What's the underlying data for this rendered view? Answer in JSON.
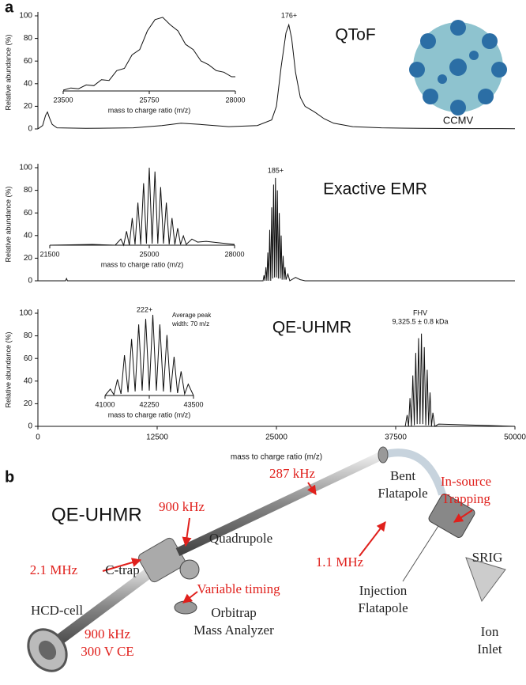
{
  "figure": {
    "panel_labels": [
      "a",
      "b"
    ],
    "image_label": "CCMV",
    "schematic": {
      "title": "QE-UHMR",
      "labels": [
        {
          "lines": [
            "287 kHz"
          ],
          "color": "#e0201c"
        },
        {
          "lines": [
            "Bent",
            "Flatapole"
          ],
          "color": "#222222"
        },
        {
          "lines": [
            "In-source",
            "Trapping"
          ],
          "color": "#e0201c"
        },
        {
          "lines": [
            "900 kHz"
          ],
          "color": "#e0201c"
        },
        {
          "lines": [
            "Quadrupole"
          ],
          "color": "#222222"
        },
        {
          "lines": [
            "2.1 MHz"
          ],
          "color": "#e0201c"
        },
        {
          "lines": [
            "C-trap"
          ],
          "color": "#222222"
        },
        {
          "lines": [
            "1.1 MHz"
          ],
          "color": "#e0201c"
        },
        {
          "lines": [
            "SRIG"
          ],
          "color": "#222222"
        },
        {
          "lines": [
            "Injection",
            "Flatapole"
          ],
          "color": "#222222"
        },
        {
          "lines": [
            "Variable timing"
          ],
          "color": "#e0201c"
        },
        {
          "lines": [
            "HCD-cell"
          ],
          "color": "#222222"
        },
        {
          "lines": [
            "Orbitrap",
            "Mass Analyzer"
          ],
          "color": "#222222"
        },
        {
          "lines": [
            "900 kHz",
            "300 V CE"
          ],
          "color": "#e0201c"
        },
        {
          "lines": [
            "Ion",
            "Inlet"
          ],
          "color": "#222222"
        }
      ]
    }
  },
  "chart_data": [
    {
      "type": "line",
      "title": "QToF",
      "ylabel": "Relative abundance (%)",
      "annotations": [
        "176+"
      ],
      "color": "#111111",
      "xlim": [
        0,
        50000
      ],
      "ylim": [
        0,
        100
      ],
      "yticks": [
        0,
        20,
        40,
        60,
        80,
        100
      ],
      "x": [
        0,
        500,
        800,
        1000,
        1200,
        1500,
        2000,
        5000,
        10000,
        13000,
        15000,
        17000,
        20000,
        23000,
        24500,
        25000,
        25500,
        26000,
        26300,
        26600,
        27000,
        27500,
        28000,
        29000,
        30000,
        31000,
        33000,
        36000,
        40000,
        45000,
        50000
      ],
      "values": [
        0,
        3,
        12,
        15,
        10,
        4,
        1,
        0.5,
        1,
        3,
        5,
        4,
        2,
        3,
        8,
        20,
        55,
        85,
        92,
        80,
        50,
        28,
        20,
        15,
        9,
        5,
        2,
        1,
        0.5,
        0.3,
        0.2
      ]
    },
    {
      "type": "line",
      "xlabel": "mass to charge ratio (m/z)",
      "color": "#111111",
      "xlim": [
        23500,
        28000
      ],
      "ylim": [
        0,
        100
      ],
      "xticks": [
        23500,
        25750,
        28000
      ],
      "x": [
        23500,
        23700,
        23900,
        24100,
        24300,
        24500,
        24700,
        24900,
        25100,
        25300,
        25500,
        25700,
        25900,
        26100,
        26300,
        26500,
        26700,
        26900,
        27100,
        27300,
        27500,
        27700,
        27900,
        28000
      ],
      "values": [
        1,
        4,
        3,
        8,
        7,
        15,
        14,
        27,
        30,
        48,
        55,
        80,
        95,
        98,
        88,
        80,
        62,
        55,
        40,
        35,
        27,
        25,
        19,
        19
      ]
    },
    {
      "type": "line",
      "title": "Exactive EMR",
      "ylabel": "Relative abundance (%)",
      "annotations": [
        "185+"
      ],
      "color": "#111111",
      "xlim": [
        0,
        50000
      ],
      "ylim": [
        0,
        100
      ],
      "yticks": [
        0,
        20,
        40,
        60,
        80,
        100
      ],
      "x": [
        0,
        2900,
        3000,
        3100,
        20000,
        23600,
        23700,
        23800,
        23900,
        24000,
        24100,
        24200,
        24300,
        24400,
        24500,
        24600,
        24700,
        24800,
        24900,
        25000,
        25100,
        25200,
        25300,
        25400,
        25500,
        25600,
        25700,
        25800,
        25900,
        26000,
        26200,
        26400,
        27000,
        27500,
        28000,
        35000,
        50000
      ],
      "values": [
        0,
        0,
        2,
        0,
        0,
        0,
        5,
        0,
        12,
        0,
        25,
        0,
        45,
        0,
        65,
        2,
        85,
        3,
        91,
        3,
        80,
        2,
        60,
        2,
        40,
        1,
        22,
        1,
        12,
        1,
        6,
        0,
        3,
        1,
        0,
        0,
        0
      ]
    },
    {
      "type": "line",
      "xlabel": "mass to charge ratio (m/z)",
      "color": "#111111",
      "xlim": [
        21500,
        28000
      ],
      "ylim": [
        0,
        100
      ],
      "xticks": [
        21500,
        25000,
        28000
      ],
      "x": [
        21500,
        23000,
        23800,
        24000,
        24100,
        24200,
        24300,
        24400,
        24500,
        24600,
        24700,
        24800,
        24900,
        25000,
        25100,
        25200,
        25300,
        25400,
        25500,
        25600,
        25700,
        25800,
        25900,
        26000,
        26100,
        26200,
        26300,
        26500,
        26700,
        27000,
        27500,
        28000
      ],
      "values": [
        0,
        1,
        0,
        8,
        0,
        18,
        0,
        35,
        1,
        55,
        1,
        80,
        2,
        100,
        2,
        95,
        2,
        75,
        2,
        55,
        1,
        35,
        1,
        22,
        1,
        12,
        1,
        8,
        4,
        5,
        3,
        1
      ]
    },
    {
      "type": "line",
      "title": "QE-UHMR",
      "ylabel": "Relative abundance (%)",
      "xlabel": "mass to charge ratio (m/z)",
      "annotations": [
        "FHV",
        "9,325.5 ± 0.8 kDa"
      ],
      "color": "#111111",
      "xlim": [
        0,
        50000
      ],
      "ylim": [
        0,
        100
      ],
      "yticks": [
        0,
        20,
        40,
        60,
        80,
        100
      ],
      "xticks": [
        0,
        12500,
        25000,
        37500,
        50000
      ],
      "x": [
        0,
        37500,
        38500,
        38700,
        38850,
        39000,
        39150,
        39300,
        39450,
        39600,
        39750,
        39900,
        40050,
        40200,
        40350,
        40500,
        40650,
        40800,
        40950,
        41100,
        41250,
        41400,
        41600,
        42000,
        50000
      ],
      "values": [
        0,
        0,
        0,
        10,
        0,
        25,
        0,
        45,
        1,
        65,
        2,
        78,
        2,
        82,
        2,
        70,
        1,
        50,
        1,
        30,
        0,
        12,
        0,
        2,
        0
      ]
    },
    {
      "type": "line",
      "xlabel": "mass to charge ratio (m/z)",
      "annotations": [
        "222+",
        "Average peak",
        "width: 70 m/z"
      ],
      "color": "#111111",
      "xlim": [
        41000,
        43500
      ],
      "ylim": [
        0,
        100
      ],
      "xticks": [
        41000,
        42250,
        43500
      ],
      "x": [
        41000,
        41150,
        41250,
        41350,
        41450,
        41550,
        41650,
        41750,
        41850,
        41950,
        42050,
        42150,
        42250,
        42350,
        42450,
        42550,
        42650,
        42750,
        42850,
        42950,
        43050,
        43150,
        43250,
        43350,
        43500
      ],
      "values": [
        0,
        8,
        1,
        20,
        2,
        50,
        4,
        70,
        5,
        88,
        6,
        95,
        6,
        100,
        6,
        88,
        5,
        75,
        4,
        48,
        3,
        30,
        2,
        14,
        0
      ]
    }
  ]
}
